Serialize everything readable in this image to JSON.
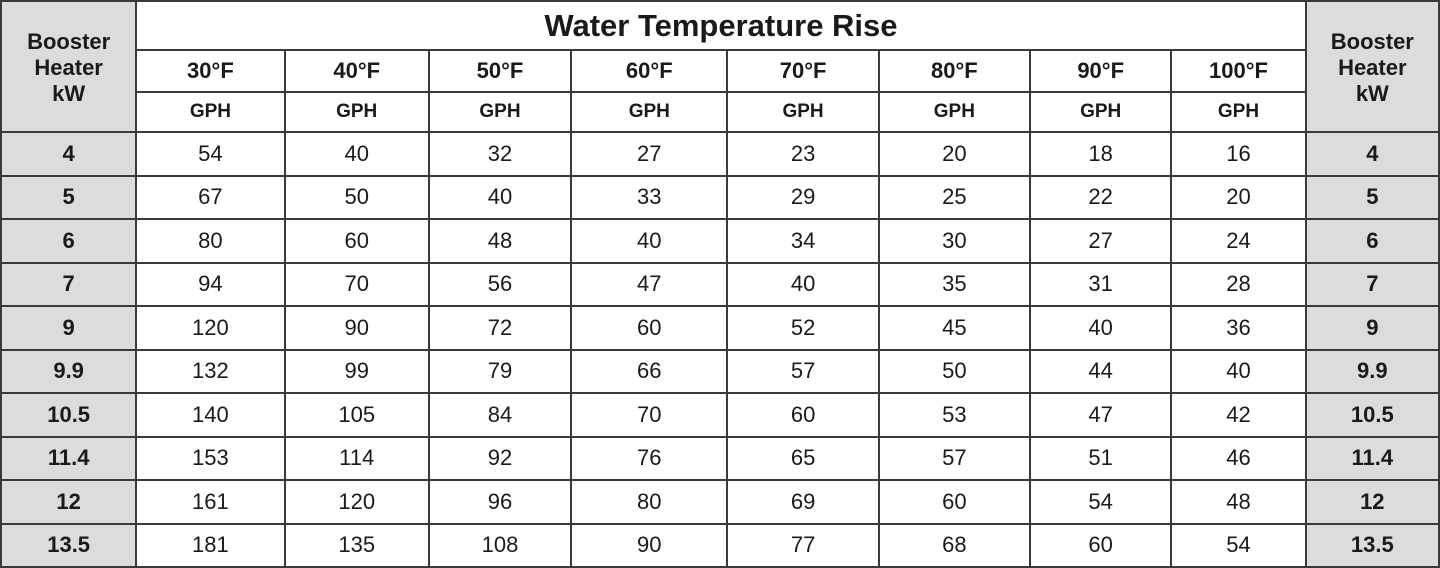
{
  "table": {
    "title": "Water Temperature Rise",
    "side_header_line1": "Booster",
    "side_header_line2": "Heater",
    "side_header_line3": "kW",
    "temperatures": [
      "30°F",
      "40°F",
      "50°F",
      "60°F",
      "70°F",
      "80°F",
      "90°F",
      "100°F"
    ],
    "unit": "GPH",
    "rows": [
      {
        "kw": "4",
        "values": [
          "54",
          "40",
          "32",
          "27",
          "23",
          "20",
          "18",
          "16"
        ]
      },
      {
        "kw": "5",
        "values": [
          "67",
          "50",
          "40",
          "33",
          "29",
          "25",
          "22",
          "20"
        ]
      },
      {
        "kw": "6",
        "values": [
          "80",
          "60",
          "48",
          "40",
          "34",
          "30",
          "27",
          "24"
        ]
      },
      {
        "kw": "7",
        "values": [
          "94",
          "70",
          "56",
          "47",
          "40",
          "35",
          "31",
          "28"
        ]
      },
      {
        "kw": "9",
        "values": [
          "120",
          "90",
          "72",
          "60",
          "52",
          "45",
          "40",
          "36"
        ]
      },
      {
        "kw": "9.9",
        "values": [
          "132",
          "99",
          "79",
          "66",
          "57",
          "50",
          "44",
          "40"
        ]
      },
      {
        "kw": "10.5",
        "values": [
          "140",
          "105",
          "84",
          "70",
          "60",
          "53",
          "47",
          "42"
        ]
      },
      {
        "kw": "11.4",
        "values": [
          "153",
          "114",
          "92",
          "76",
          "65",
          "57",
          "51",
          "46"
        ]
      },
      {
        "kw": "12",
        "values": [
          "161",
          "120",
          "96",
          "80",
          "69",
          "60",
          "54",
          "48"
        ]
      },
      {
        "kw": "13.5",
        "values": [
          "181",
          "135",
          "108",
          "90",
          "77",
          "68",
          "60",
          "54"
        ]
      }
    ]
  },
  "colors": {
    "side_column_bg": "#dcdcdc",
    "border": "#3a3a3a",
    "text": "#1a1a1a"
  }
}
